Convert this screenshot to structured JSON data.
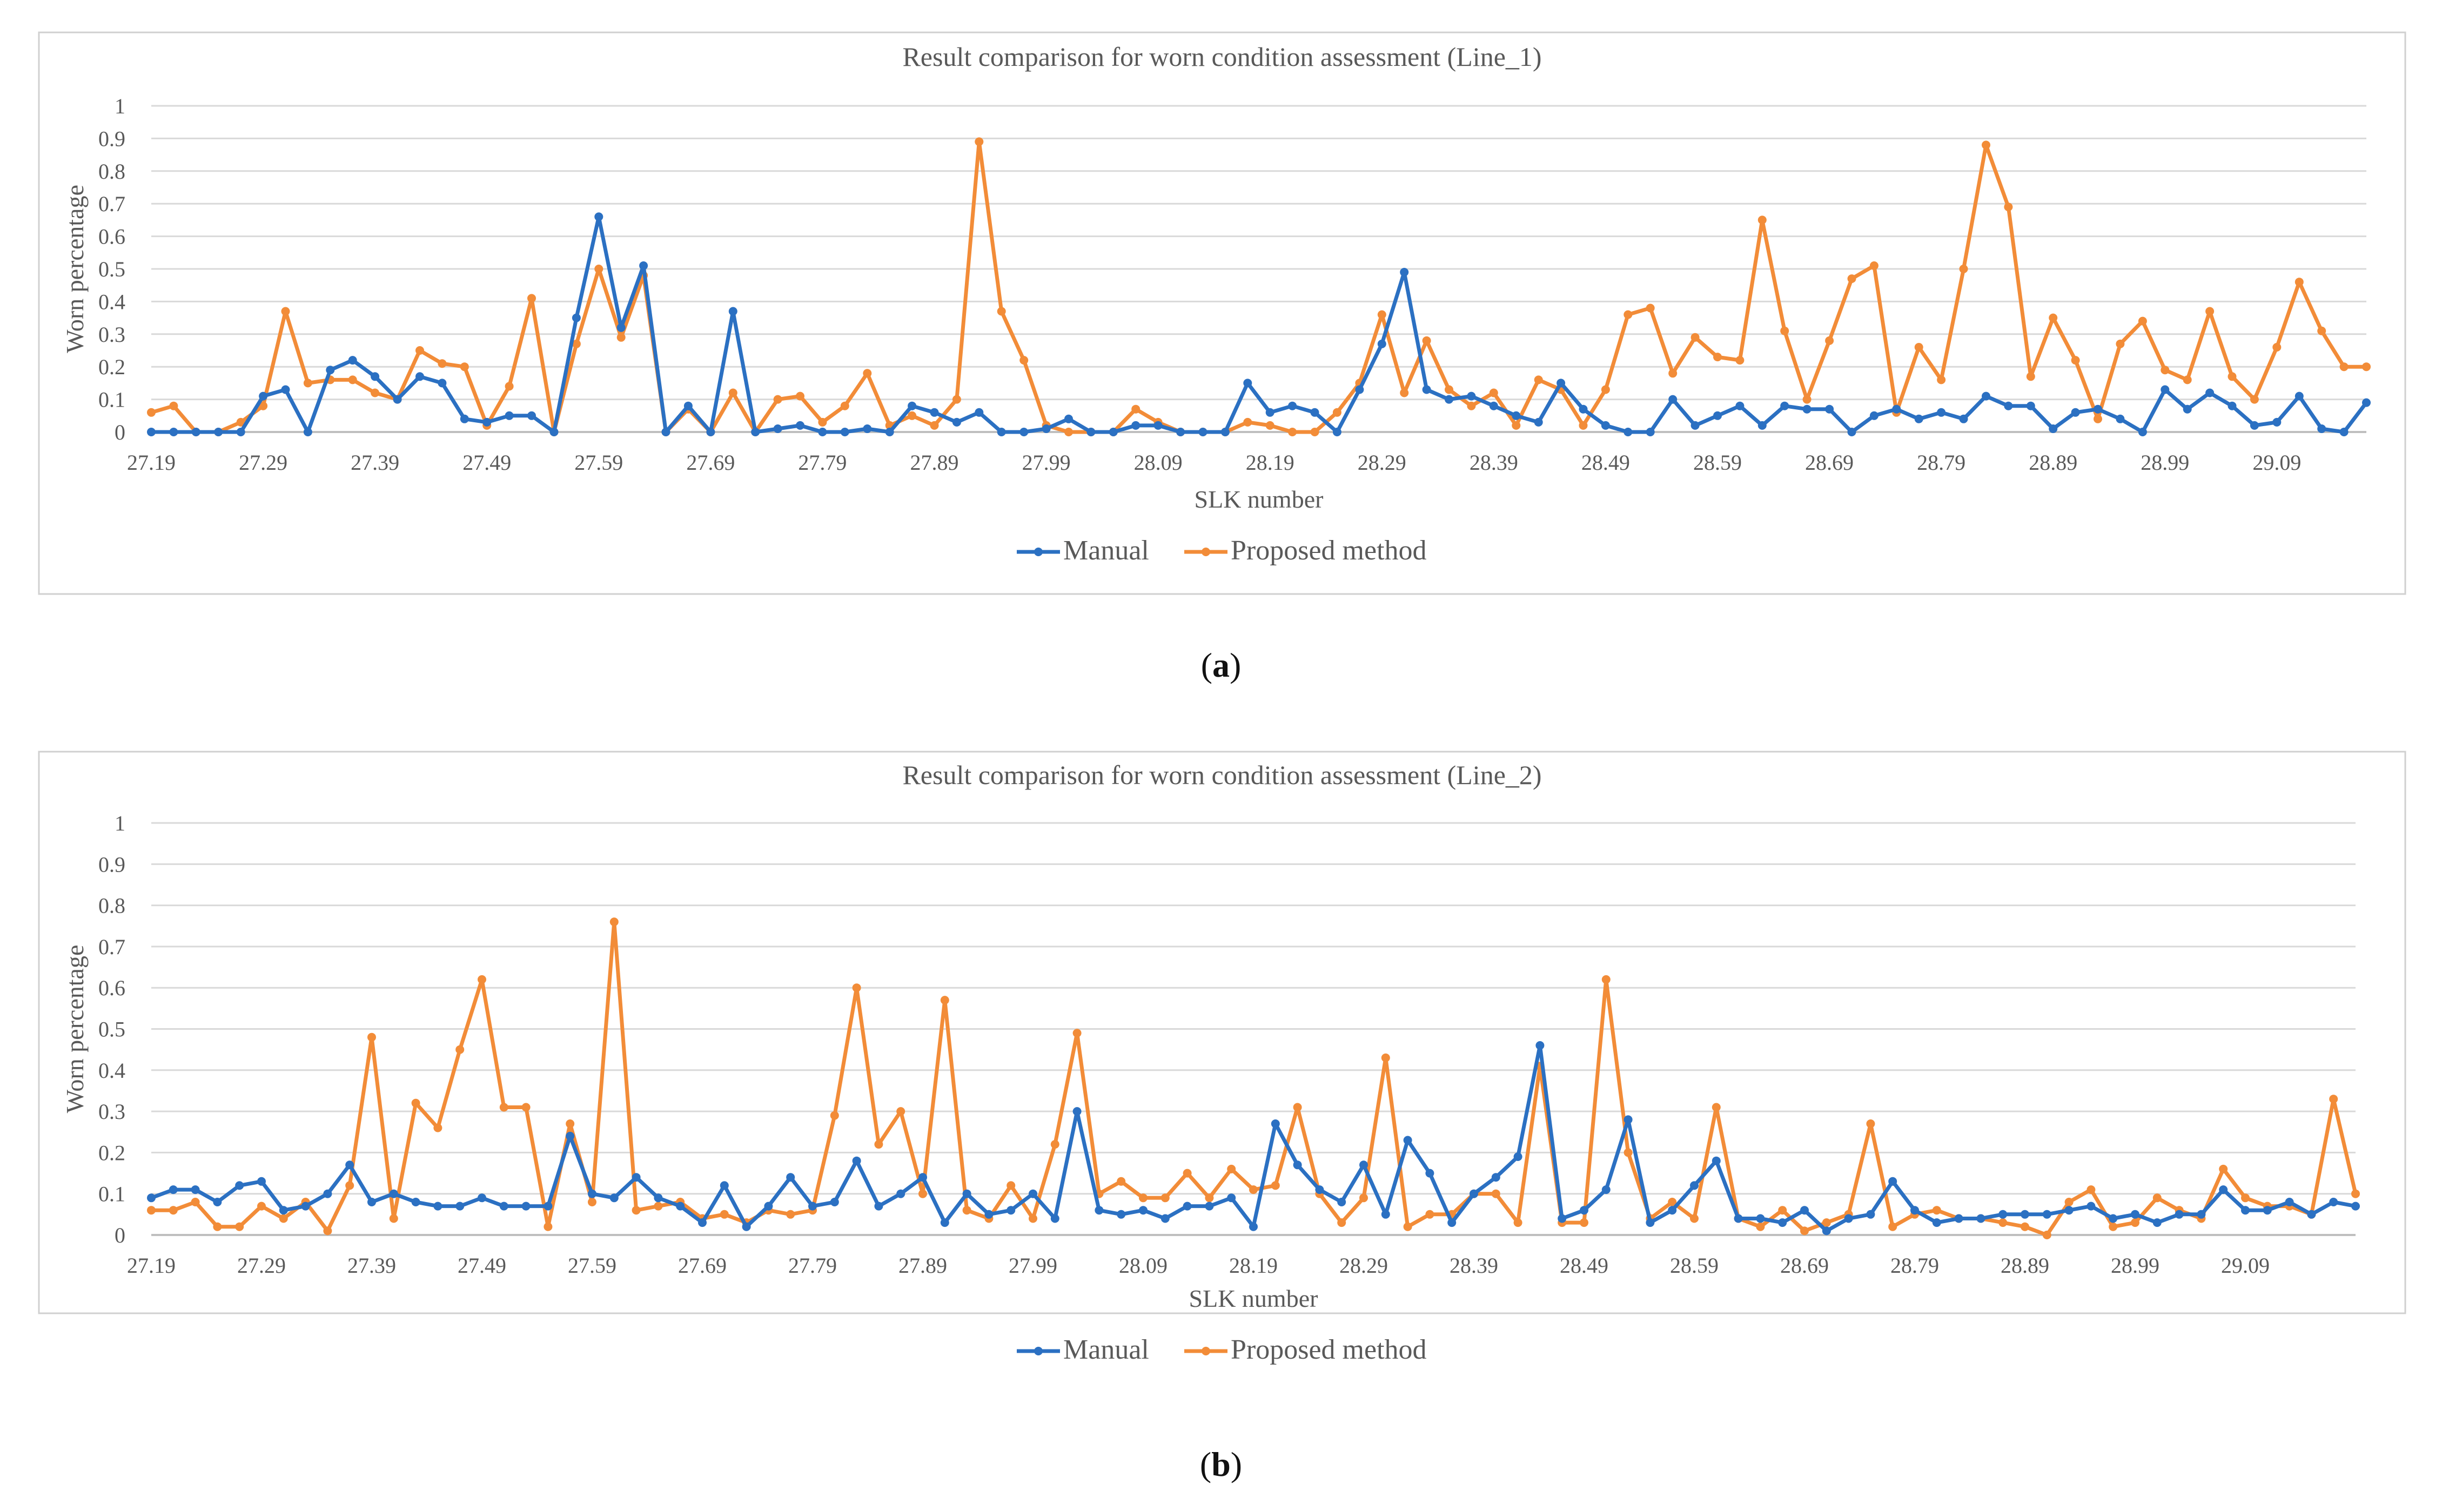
{
  "colors": {
    "manual": "#2b70c2",
    "proposed": "#f28c38",
    "grid": "#d9d9d9",
    "axis": "#bfbfbf",
    "text": "#595959",
    "frame": "#d0d0d0"
  },
  "figures": [
    {
      "caption_letter": "a"
    },
    {
      "caption_letter": "b"
    }
  ],
  "chart_data": [
    {
      "type": "line",
      "title": "Result comparison for worn condition assessment (Line_1)",
      "xlabel": "SLK number",
      "ylabel": "Worn percentage",
      "ylim": [
        0,
        1
      ],
      "yticks": [
        "0",
        "0.1",
        "0.2",
        "0.3",
        "0.4",
        "0.5",
        "0.6",
        "0.7",
        "0.8",
        "0.9",
        "1"
      ],
      "xtick_labels": [
        "27.19",
        "27.29",
        "27.39",
        "27.49",
        "27.59",
        "27.69",
        "27.79",
        "27.89",
        "27.99",
        "28.09",
        "28.19",
        "28.29",
        "28.39",
        "28.49",
        "28.59",
        "28.69",
        "28.79",
        "28.89",
        "28.99",
        "29.09"
      ],
      "legend": [
        "Manual",
        "Proposed method"
      ],
      "legend_position": "bottom",
      "grid": true,
      "series": [
        {
          "name": "Manual",
          "values": [
            0.0,
            0.0,
            0.0,
            0.0,
            0.0,
            0.11,
            0.13,
            0.0,
            0.19,
            0.22,
            0.17,
            0.1,
            0.17,
            0.15,
            0.04,
            0.03,
            0.05,
            0.05,
            0.0,
            0.35,
            0.66,
            0.32,
            0.51,
            0.0,
            0.08,
            0.0,
            0.37,
            0.0,
            0.01,
            0.02,
            0.0,
            0.0,
            0.01,
            0.0,
            0.08,
            0.06,
            0.03,
            0.06,
            0.0,
            0.0,
            0.01,
            0.04,
            0.0,
            0.0,
            0.02,
            0.02,
            0.0,
            0.0,
            0.0,
            0.15,
            0.06,
            0.08,
            0.06,
            0.0,
            0.13,
            0.27,
            0.49,
            0.13,
            0.1,
            0.11,
            0.08,
            0.05,
            0.03,
            0.15,
            0.07,
            0.02,
            0.0,
            0.0,
            0.1,
            0.02,
            0.05,
            0.08,
            0.02,
            0.08,
            0.07,
            0.07,
            0.0,
            0.05,
            0.07,
            0.04,
            0.06,
            0.04,
            0.11,
            0.08,
            0.08,
            0.01,
            0.06,
            0.07,
            0.04,
            0.0,
            0.13,
            0.07,
            0.12,
            0.08,
            0.02,
            0.03,
            0.11,
            0.01,
            0.0,
            0.09
          ]
        },
        {
          "name": "Proposed method",
          "values": [
            0.06,
            0.08,
            0.0,
            0.0,
            0.03,
            0.08,
            0.37,
            0.15,
            0.16,
            0.16,
            0.12,
            0.1,
            0.25,
            0.21,
            0.2,
            0.02,
            0.14,
            0.41,
            0.0,
            0.27,
            0.5,
            0.29,
            0.48,
            0.0,
            0.07,
            0.0,
            0.12,
            0.0,
            0.1,
            0.11,
            0.03,
            0.08,
            0.18,
            0.02,
            0.05,
            0.02,
            0.1,
            0.89,
            0.37,
            0.22,
            0.02,
            0.0,
            0.0,
            0.0,
            0.07,
            0.03,
            0.0,
            0.0,
            0.0,
            0.03,
            0.02,
            0.0,
            0.0,
            0.06,
            0.15,
            0.36,
            0.12,
            0.28,
            0.13,
            0.08,
            0.12,
            0.02,
            0.16,
            0.13,
            0.02,
            0.13,
            0.36,
            0.38,
            0.18,
            0.29,
            0.23,
            0.22,
            0.65,
            0.31,
            0.1,
            0.28,
            0.47,
            0.51,
            0.06,
            0.26,
            0.16,
            0.5,
            0.88,
            0.69,
            0.17,
            0.35,
            0.22,
            0.04,
            0.27,
            0.34,
            0.19,
            0.16,
            0.37,
            0.17,
            0.1,
            0.26,
            0.46,
            0.31,
            0.2,
            0.2
          ]
        }
      ]
    },
    {
      "type": "line",
      "title": "Result comparison for worn condition assessment (Line_2)",
      "xlabel": "SLK number",
      "ylabel": "Worn percentage",
      "ylim": [
        0,
        1
      ],
      "yticks": [
        "0",
        "0.1",
        "0.2",
        "0.3",
        "0.4",
        "0.5",
        "0.6",
        "0.7",
        "0.8",
        "0.9",
        "1"
      ],
      "xtick_labels": [
        "27.19",
        "27.29",
        "27.39",
        "27.49",
        "27.59",
        "27.69",
        "27.79",
        "27.89",
        "27.99",
        "28.09",
        "28.19",
        "28.29",
        "28.39",
        "28.49",
        "28.59",
        "28.69",
        "28.79",
        "28.89",
        "28.99",
        "29.09"
      ],
      "legend": [
        "Manual",
        "Proposed method"
      ],
      "legend_position": "bottom",
      "grid": true,
      "series": [
        {
          "name": "Manual",
          "values": [
            0.09,
            0.11,
            0.11,
            0.08,
            0.12,
            0.13,
            0.06,
            0.07,
            0.1,
            0.17,
            0.08,
            0.1,
            0.08,
            0.07,
            0.07,
            0.09,
            0.07,
            0.07,
            0.07,
            0.24,
            0.1,
            0.09,
            0.14,
            0.09,
            0.07,
            0.03,
            0.12,
            0.02,
            0.07,
            0.14,
            0.07,
            0.08,
            0.18,
            0.07,
            0.1,
            0.14,
            0.03,
            0.1,
            0.05,
            0.06,
            0.1,
            0.04,
            0.3,
            0.06,
            0.05,
            0.06,
            0.04,
            0.07,
            0.07,
            0.09,
            0.02,
            0.27,
            0.17,
            0.11,
            0.08,
            0.17,
            0.05,
            0.23,
            0.15,
            0.03,
            0.1,
            0.14,
            0.19,
            0.46,
            0.04,
            0.06,
            0.11,
            0.28,
            0.03,
            0.06,
            0.12,
            0.18,
            0.04,
            0.04,
            0.03,
            0.06,
            0.01,
            0.04,
            0.05,
            0.13,
            0.06,
            0.03,
            0.04,
            0.04,
            0.05,
            0.05,
            0.05,
            0.06,
            0.07,
            0.04,
            0.05,
            0.03,
            0.05,
            0.05,
            0.11,
            0.06,
            0.06,
            0.08,
            0.05,
            0.08,
            0.07
          ]
        },
        {
          "name": "Proposed method",
          "values": [
            0.06,
            0.06,
            0.08,
            0.02,
            0.02,
            0.07,
            0.04,
            0.08,
            0.01,
            0.12,
            0.48,
            0.04,
            0.32,
            0.26,
            0.45,
            0.62,
            0.31,
            0.31,
            0.02,
            0.27,
            0.08,
            0.76,
            0.06,
            0.07,
            0.08,
            0.04,
            0.05,
            0.03,
            0.06,
            0.05,
            0.06,
            0.29,
            0.6,
            0.22,
            0.3,
            0.1,
            0.57,
            0.06,
            0.04,
            0.12,
            0.04,
            0.22,
            0.49,
            0.1,
            0.13,
            0.09,
            0.09,
            0.15,
            0.09,
            0.16,
            0.11,
            0.12,
            0.31,
            0.1,
            0.03,
            0.09,
            0.43,
            0.02,
            0.05,
            0.05,
            0.1,
            0.1,
            0.03,
            0.41,
            0.03,
            0.03,
            0.62,
            0.2,
            0.04,
            0.08,
            0.04,
            0.31,
            0.04,
            0.02,
            0.06,
            0.01,
            0.03,
            0.05,
            0.27,
            0.02,
            0.05,
            0.06,
            0.04,
            0.04,
            0.03,
            0.02,
            0.0,
            0.08,
            0.11,
            0.02,
            0.03,
            0.09,
            0.06,
            0.04,
            0.16,
            0.09,
            0.07,
            0.07,
            0.05,
            0.33,
            0.1
          ]
        }
      ]
    }
  ]
}
